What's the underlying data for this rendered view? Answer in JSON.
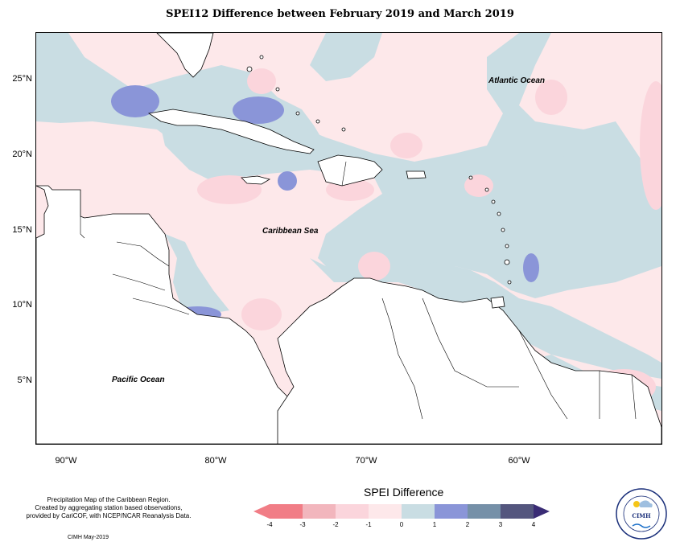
{
  "title": "SPEI12 Difference between February 2019 and March 2019",
  "map": {
    "lat_labels": [
      "25°N",
      "20°N",
      "15°N",
      "10°N",
      "5°N"
    ],
    "lon_labels": [
      "90°W",
      "80°W",
      "70°W",
      "60°W"
    ],
    "oceans": {
      "atlantic": "Atlantic Ocean",
      "caribbean": "Caribbean Sea",
      "pacific": "Pacific Ocean"
    },
    "colors": {
      "background_dry": "#fde8ea",
      "wet_light": "#c9dde3",
      "wet_medium": "#8a95d8",
      "land": "#ffffff"
    }
  },
  "info": {
    "line1": "Precipitation Map of the Caribbean Region.",
    "line2": "Created by aggregating station based observations,",
    "line3": "provided by CariCOF, with NCEP/NCAR Reanalysis Data.",
    "credit": "CIMH May-2019"
  },
  "legend": {
    "title": "SPEI Difference",
    "ticks": [
      "-4",
      "-3",
      "-2",
      "-1",
      "0",
      "1",
      "2",
      "3",
      "4"
    ],
    "colors": [
      "#f17d86",
      "#f2b6bd",
      "#fbd5dc",
      "#fde8ea",
      "#c9dde3",
      "#8a95d8",
      "#7590a8",
      "#54567e"
    ],
    "low_arrow_color": "#f17d86",
    "high_arrow_color": "#3a2c75"
  },
  "logo": {
    "text": "CIMH"
  }
}
